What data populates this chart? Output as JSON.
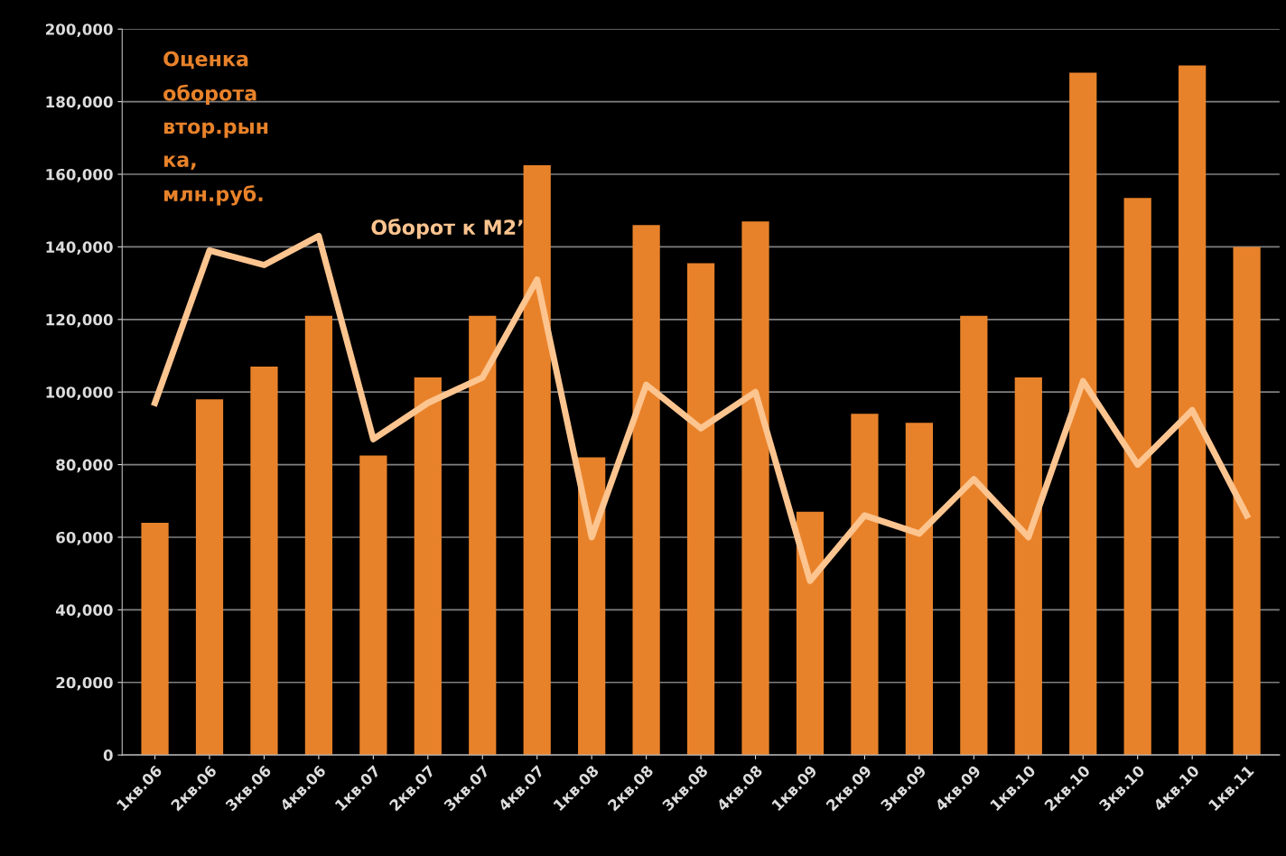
{
  "chart_data": {
    "type": "bar",
    "categories": [
      "1кв.06",
      "2кв.06",
      "3кв.06",
      "4кв.06",
      "1кв.07",
      "2кв.07",
      "3кв.07",
      "4кв.07",
      "1кв.08",
      "2кв.08",
      "3кв.08",
      "4кв.08",
      "1кв.09",
      "2кв.09",
      "3кв.09",
      "4кв.09",
      "1кв.10",
      "2кв.10",
      "3кв.10",
      "4кв.10",
      "1кв.11"
    ],
    "series": [
      {
        "name": "Оценка\nоборота\nвтор.рын\nка,\nмлн.руб.",
        "color": "#e8822a",
        "values": [
          64000,
          98000,
          107000,
          121000,
          82500,
          104000,
          121000,
          162500,
          82000,
          146000,
          135500,
          147000,
          67000,
          94000,
          91500,
          121000,
          104000,
          188000,
          153500,
          190000,
          140000
        ]
      },
      {
        "name": "Оборот к М2’",
        "type": "line",
        "color": "#fcc48f",
        "values": [
          97000,
          139000,
          135000,
          143000,
          87000,
          97000,
          104000,
          131000,
          60000,
          102000,
          90000,
          100000,
          48000,
          66000,
          61000,
          76000,
          60000,
          103000,
          80000,
          95000,
          66000
        ]
      }
    ],
    "ylim": [
      0,
      200000
    ],
    "yticks": [
      0,
      {
        "value": 20000,
        "label": "20,000"
      },
      {
        "value": 40000,
        "label": "40,000"
      },
      {
        "value": 60000,
        "label": "60,000"
      },
      {
        "value": 80000,
        "label": "80,000"
      },
      {
        "value": 100000,
        "label": "100,000"
      },
      {
        "value": 120000,
        "label": "120,000"
      },
      {
        "value": 140000,
        "label": "140,000"
      },
      {
        "value": 160000,
        "label": "160,000"
      },
      {
        "value": 180000,
        "label": "180,000"
      },
      {
        "value": 200000,
        "label": "200,000"
      }
    ],
    "grid": "y",
    "legend": false,
    "marker": "none",
    "line_style": "solid"
  }
}
